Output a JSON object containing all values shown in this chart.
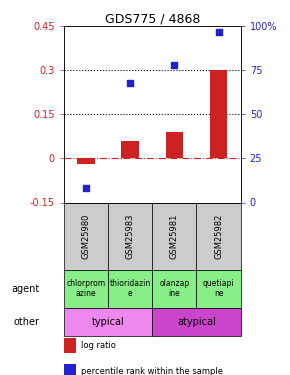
{
  "title": "GDS775 / 4868",
  "samples": [
    "GSM25980",
    "GSM25983",
    "GSM25981",
    "GSM25982"
  ],
  "log_ratio": [
    -0.02,
    0.06,
    0.09,
    0.3
  ],
  "percentile_rank": [
    8,
    68,
    78,
    97
  ],
  "ylim_left": [
    -0.15,
    0.45
  ],
  "ylim_right": [
    0,
    100
  ],
  "yticks_left": [
    -0.15,
    0.0,
    0.15,
    0.3,
    0.45
  ],
  "yticks_right": [
    0,
    25,
    50,
    75,
    100
  ],
  "hlines": [
    0.15,
    0.3
  ],
  "bar_color": "#cc2222",
  "dot_color": "#2222cc",
  "agent_labels": [
    "chlorprom\nazine",
    "thioridazin\ne",
    "olanzap\nine",
    "quetiapi\nne"
  ],
  "typical_color": "#ee88ee",
  "atypical_color": "#cc44cc",
  "agent_color": "#88ee88",
  "sample_color": "#cccccc"
}
